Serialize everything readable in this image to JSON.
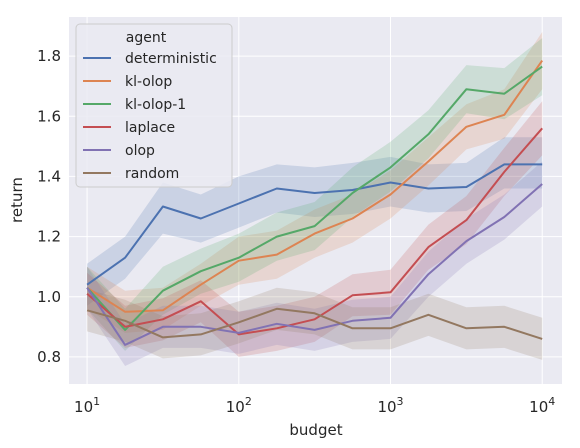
{
  "chart_data": {
    "type": "line",
    "xlabel": "budget",
    "ylabel": "return",
    "x_scale": "log",
    "xlim": [
      7.6,
      13500
    ],
    "ylim": [
      0.71,
      1.93
    ],
    "x_ticks": [
      10,
      100,
      1000,
      10000
    ],
    "x_tick_labels": [
      {
        "base": "10",
        "exp": "1"
      },
      {
        "base": "10",
        "exp": "2"
      },
      {
        "base": "10",
        "exp": "3"
      },
      {
        "base": "10",
        "exp": "4"
      }
    ],
    "y_ticks": [
      0.8,
      1.0,
      1.2,
      1.4,
      1.6,
      1.8
    ],
    "y_tick_labels": [
      "0.8",
      "1.0",
      "1.2",
      "1.4",
      "1.6",
      "1.8"
    ],
    "grid": true,
    "legend": {
      "title": "agent",
      "placement": "top-left"
    },
    "x": [
      10,
      17.8,
      31.6,
      56.2,
      100,
      178,
      316,
      562,
      1000,
      1778,
      3162,
      5623,
      10000
    ],
    "series": [
      {
        "name": "deterministic",
        "color": "#4c72b0",
        "values": [
          1.04,
          1.13,
          1.3,
          1.26,
          1.31,
          1.36,
          1.345,
          1.355,
          1.38,
          1.36,
          1.365,
          1.44,
          1.44
        ],
        "lower": [
          0.97,
          1.06,
          1.21,
          1.18,
          1.23,
          1.28,
          1.265,
          1.275,
          1.3,
          1.28,
          1.285,
          1.36,
          1.36
        ],
        "upper": [
          1.11,
          1.2,
          1.38,
          1.34,
          1.4,
          1.44,
          1.43,
          1.445,
          1.465,
          1.44,
          1.445,
          1.53,
          1.53
        ]
      },
      {
        "name": "kl-olop",
        "color": "#dd8452",
        "values": [
          1.03,
          0.95,
          0.955,
          1.04,
          1.12,
          1.14,
          1.21,
          1.26,
          1.34,
          1.45,
          1.565,
          1.605,
          1.785
        ],
        "lower": [
          0.96,
          0.88,
          0.89,
          0.97,
          1.04,
          1.06,
          1.13,
          1.18,
          1.26,
          1.37,
          1.49,
          1.525,
          1.69
        ],
        "upper": [
          1.1,
          1.02,
          1.03,
          1.11,
          1.2,
          1.22,
          1.29,
          1.34,
          1.42,
          1.53,
          1.64,
          1.69,
          1.88
        ]
      },
      {
        "name": "kl-olop-1",
        "color": "#55a868",
        "values": [
          1.03,
          0.89,
          1.02,
          1.085,
          1.13,
          1.2,
          1.235,
          1.345,
          1.43,
          1.54,
          1.69,
          1.675,
          1.765
        ],
        "lower": [
          0.96,
          0.82,
          0.94,
          1.01,
          1.05,
          1.12,
          1.155,
          1.265,
          1.35,
          1.46,
          1.61,
          1.59,
          1.67
        ],
        "upper": [
          1.1,
          0.96,
          1.1,
          1.16,
          1.21,
          1.28,
          1.315,
          1.43,
          1.515,
          1.62,
          1.77,
          1.76,
          1.86
        ]
      },
      {
        "name": "laplace",
        "color": "#c44e52",
        "values": [
          1.01,
          0.9,
          0.925,
          0.985,
          0.875,
          0.895,
          0.925,
          1.005,
          1.015,
          1.165,
          1.255,
          1.415,
          1.56
        ],
        "lower": [
          0.94,
          0.83,
          0.855,
          0.915,
          0.8,
          0.82,
          0.85,
          0.935,
          0.94,
          1.09,
          1.175,
          1.335,
          1.47
        ],
        "upper": [
          1.08,
          0.97,
          0.995,
          1.055,
          0.95,
          0.97,
          1.0,
          1.075,
          1.09,
          1.24,
          1.335,
          1.495,
          1.65
        ]
      },
      {
        "name": "olop",
        "color": "#8172b3",
        "values": [
          1.03,
          0.84,
          0.9,
          0.9,
          0.88,
          0.91,
          0.89,
          0.92,
          0.93,
          1.075,
          1.185,
          1.265,
          1.375
        ],
        "lower": [
          0.96,
          0.77,
          0.83,
          0.83,
          0.81,
          0.84,
          0.82,
          0.85,
          0.86,
          1.0,
          1.11,
          1.19,
          1.3
        ],
        "upper": [
          1.1,
          0.91,
          0.97,
          0.97,
          0.95,
          0.98,
          0.96,
          0.99,
          1.0,
          1.15,
          1.26,
          1.34,
          1.45
        ]
      },
      {
        "name": "random",
        "color": "#937860",
        "values": [
          0.955,
          0.92,
          0.865,
          0.875,
          0.915,
          0.96,
          0.945,
          0.895,
          0.895,
          0.94,
          0.895,
          0.9,
          0.86
        ],
        "lower": [
          0.885,
          0.85,
          0.795,
          0.805,
          0.845,
          0.89,
          0.875,
          0.825,
          0.825,
          0.87,
          0.825,
          0.83,
          0.79
        ],
        "upper": [
          1.025,
          0.99,
          0.935,
          0.945,
          0.985,
          1.03,
          1.015,
          0.965,
          0.965,
          1.01,
          0.965,
          0.97,
          0.93
        ]
      }
    ]
  }
}
